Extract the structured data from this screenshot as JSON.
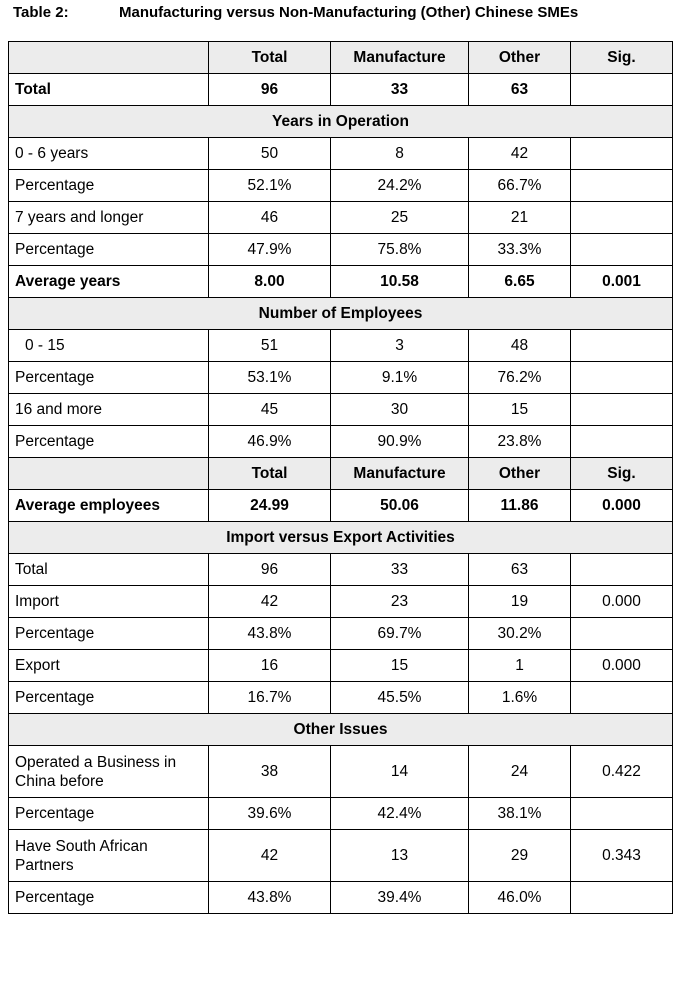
{
  "caption": {
    "number": "Table 2:",
    "title": "Manufacturing versus Non-Manufacturing (Other) Chinese SMEs"
  },
  "columns": [
    "",
    "Total",
    "Manufacture",
    "Other",
    "Sig."
  ],
  "total_row": {
    "label": "Total",
    "values": [
      "96",
      "33",
      "63",
      ""
    ]
  },
  "sections": {
    "years": {
      "title": "Years in Operation",
      "rows": [
        {
          "label": "0 - 6 years",
          "values": [
            "50",
            "8",
            "42",
            ""
          ]
        },
        {
          "label": "Percentage",
          "values": [
            "52.1%",
            "24.2%",
            "66.7%",
            ""
          ]
        },
        {
          "label": "7 years and longer",
          "values": [
            "46",
            "25",
            "21",
            ""
          ]
        },
        {
          "label": "Percentage",
          "values": [
            "47.9%",
            "75.8%",
            "33.3%",
            ""
          ]
        },
        {
          "label": "Average years",
          "values": [
            "8.00",
            "10.58",
            "6.65",
            "0.001"
          ]
        }
      ]
    },
    "employees": {
      "title": "Number of Employees",
      "rows": [
        {
          "label": "0 - 15",
          "values": [
            "51",
            "3",
            "48",
            ""
          ]
        },
        {
          "label": "Percentage",
          "values": [
            "53.1%",
            "9.1%",
            "76.2%",
            ""
          ]
        },
        {
          "label": "16 and more",
          "values": [
            "45",
            "30",
            "15",
            ""
          ]
        },
        {
          "label": "Percentage",
          "values": [
            "46.9%",
            "90.9%",
            "23.8%",
            ""
          ]
        }
      ],
      "average": {
        "label": "Average employees",
        "values": [
          "24.99",
          "50.06",
          "11.86",
          "0.000"
        ]
      }
    },
    "trade": {
      "title": "Import versus Export Activities",
      "rows": [
        {
          "label": "Total",
          "values": [
            "96",
            "33",
            "63",
            ""
          ]
        },
        {
          "label": "Import",
          "values": [
            "42",
            "23",
            "19",
            "0.000"
          ]
        },
        {
          "label": "Percentage",
          "values": [
            "43.8%",
            "69.7%",
            "30.2%",
            ""
          ]
        },
        {
          "label": "Export",
          "values": [
            "16",
            "15",
            "1",
            "0.000"
          ]
        },
        {
          "label": "Percentage",
          "values": [
            "16.7%",
            "45.5%",
            "1.6%",
            ""
          ]
        }
      ]
    },
    "other": {
      "title": "Other Issues",
      "rows": [
        {
          "label_lines": [
            "Operated a Business in",
            "China before"
          ],
          "values": [
            "38",
            "14",
            "24",
            "0.422"
          ]
        },
        {
          "label": "Percentage",
          "values": [
            "39.6%",
            "42.4%",
            "38.1%",
            ""
          ]
        },
        {
          "label_lines": [
            "Have South African",
            "Partners"
          ],
          "values": [
            "42",
            "13",
            "29",
            "0.343"
          ]
        },
        {
          "label": "Percentage",
          "values": [
            "43.8%",
            "39.4%",
            "46.0%",
            ""
          ]
        }
      ]
    }
  }
}
